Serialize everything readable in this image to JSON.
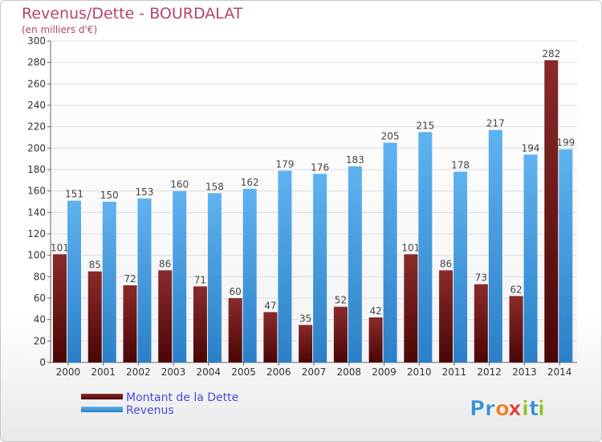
{
  "title": "Revenus/Dette - BOURDALAT",
  "subtitle": "(en milliers d'€)",
  "logo": {
    "text": "Proxiti",
    "letters": [
      "P",
      "r",
      "o",
      "x",
      "i",
      "t",
      "i"
    ],
    "colors": [
      "#3a8fd8",
      "#3a8fd8",
      "#f07c1a",
      "#e23b3b",
      "#8cbf26",
      "#3a8fd8",
      "#8cbf26"
    ]
  },
  "chart_data": {
    "type": "bar",
    "title": "Revenus/Dette - BOURDALAT",
    "subtitle": "(en milliers d'€)",
    "categories": [
      "2000",
      "2001",
      "2002",
      "2003",
      "2004",
      "2005",
      "2006",
      "2007",
      "2008",
      "2009",
      "2010",
      "2011",
      "2012",
      "2013",
      "2014"
    ],
    "series": [
      {
        "name": "Montant de la Dette",
        "color": "#7a1f1f",
        "values": [
          101,
          85,
          72,
          86,
          71,
          60,
          47,
          35,
          52,
          42,
          101,
          86,
          73,
          62,
          282
        ]
      },
      {
        "name": "Revenus",
        "color": "#4aa3e8",
        "values": [
          151,
          150,
          153,
          160,
          158,
          162,
          179,
          176,
          183,
          205,
          215,
          178,
          217,
          194,
          199
        ]
      }
    ],
    "yticks": [
      0,
      20,
      40,
      60,
      80,
      100,
      120,
      140,
      160,
      180,
      200,
      220,
      240,
      260,
      280,
      300
    ],
    "ylim": [
      0,
      300
    ],
    "grid": true,
    "legend": "bottom-left"
  }
}
